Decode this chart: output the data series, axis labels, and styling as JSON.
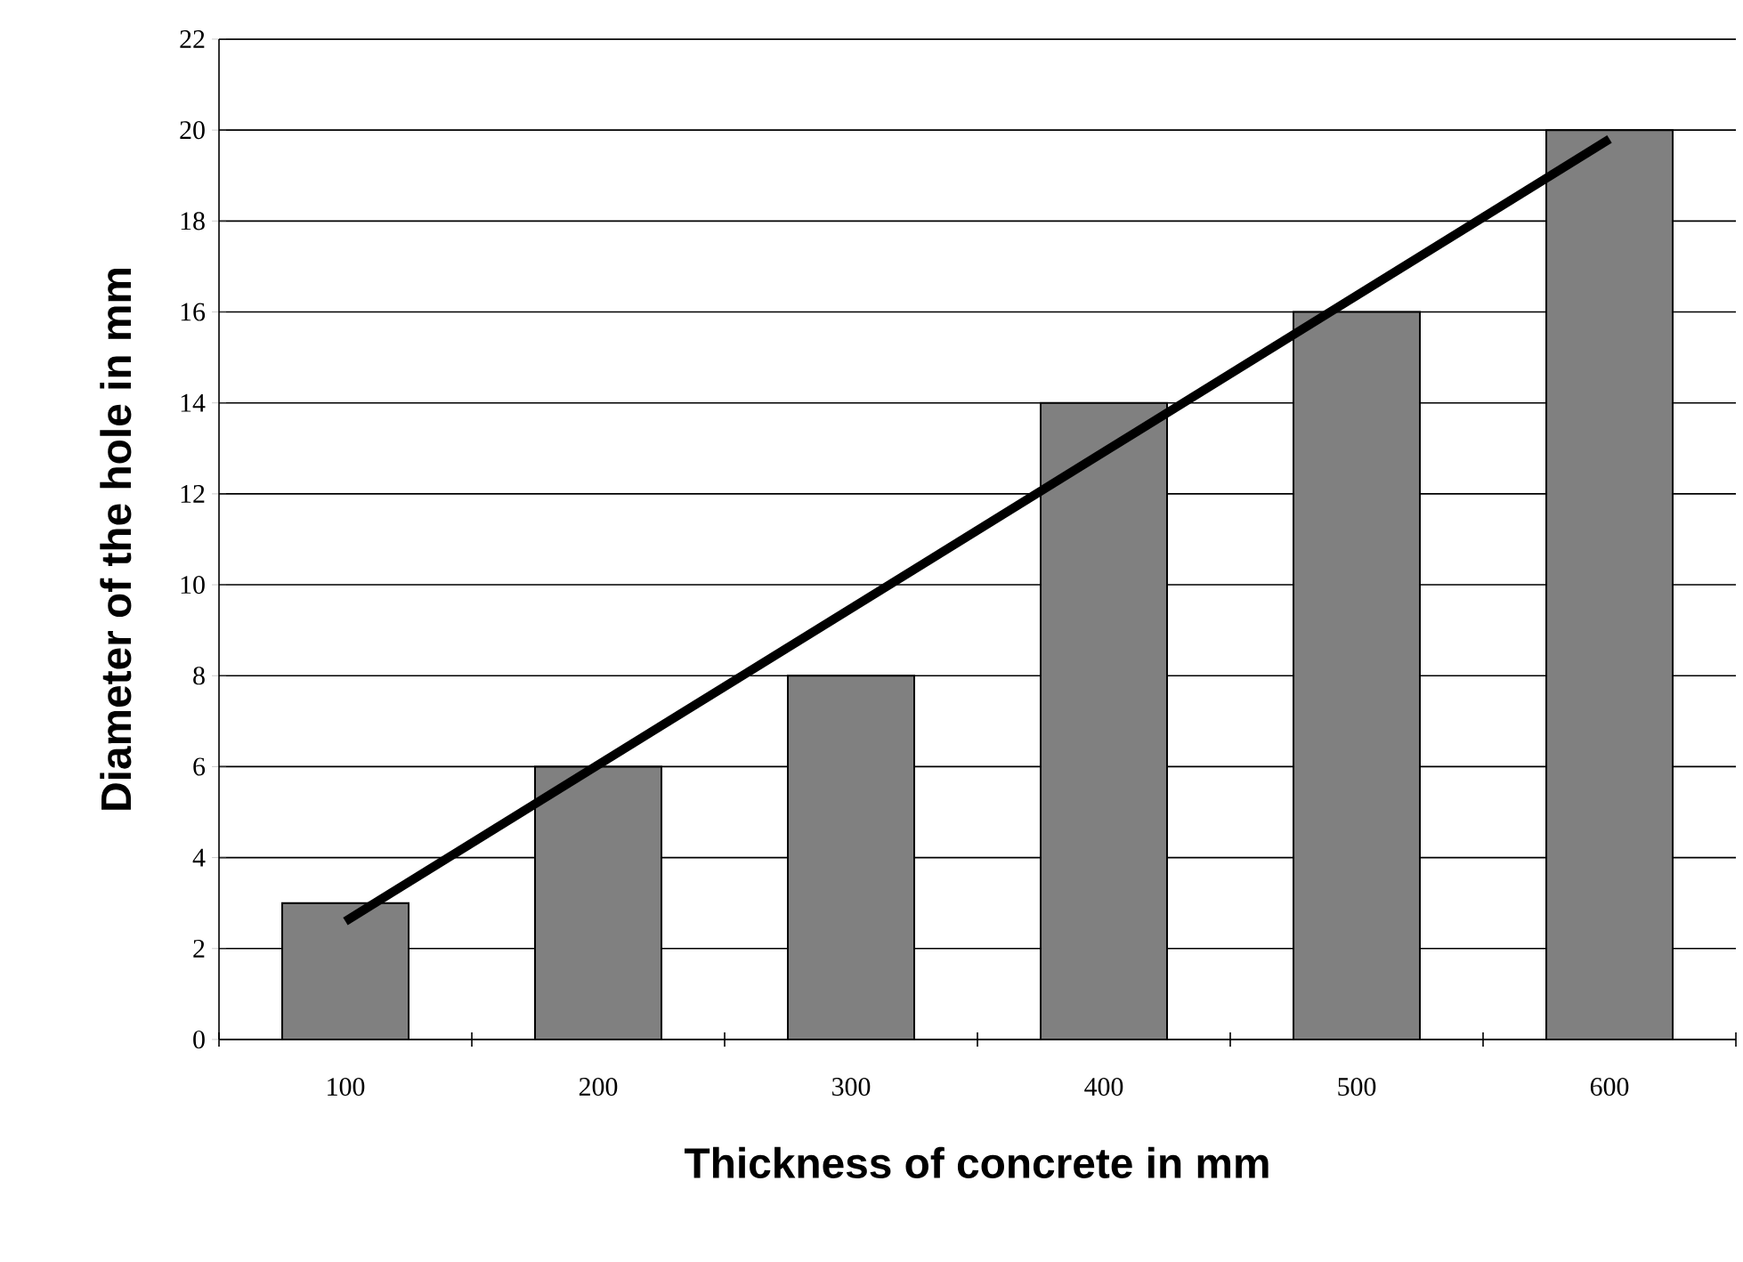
{
  "chart_data": {
    "type": "bar",
    "xlabel": "Thickness of concrete in mm",
    "ylabel": "Diameter of the hole in mm",
    "categories": [
      "100",
      "200",
      "300",
      "400",
      "500",
      "600"
    ],
    "series": [
      {
        "color": "#808080",
        "values": [
          3,
          6,
          8,
          14,
          16,
          20
        ]
      },
      {
        "type": "line",
        "color": "#000000",
        "x": [
          "100",
          "600"
        ],
        "values": [
          2.6,
          19.8
        ]
      }
    ],
    "ylim": [
      0,
      22
    ],
    "yticks": [
      0,
      2,
      4,
      6,
      8,
      10,
      12,
      14,
      16,
      18,
      20,
      22
    ],
    "grid": "y"
  }
}
